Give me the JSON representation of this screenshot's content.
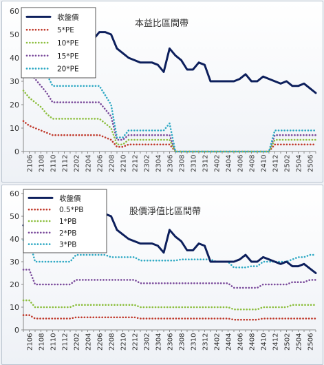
{
  "chart_data": [
    {
      "type": "line",
      "title": "本益比區間帶",
      "xlabel": "",
      "ylabel": "",
      "ylim": [
        0,
        60
      ],
      "yticks": [
        0,
        10,
        20,
        30,
        40,
        50,
        60
      ],
      "legend_position": "top-left",
      "x": [
        "2105",
        "2106",
        "2107",
        "2108",
        "2109",
        "2110",
        "2111",
        "2112",
        "2201",
        "2202",
        "2203",
        "2204",
        "2205",
        "2206",
        "2207",
        "2208",
        "2209",
        "2210",
        "2211",
        "2212",
        "2301",
        "2302",
        "2303",
        "2304",
        "2305",
        "2306",
        "2307",
        "2308",
        "2309",
        "2310",
        "2311",
        "2312",
        "2401",
        "2402",
        "2403",
        "2404",
        "2405",
        "2406",
        "2407",
        "2408",
        "2409",
        "2410",
        "2411",
        "2412",
        "2501",
        "2502",
        "2503",
        "2504",
        "2505",
        "2506",
        "2507"
      ],
      "xtick_labels": [
        "2106",
        "2108",
        "2110",
        "2112",
        "2202",
        "2204",
        "2206",
        "2208",
        "2210",
        "2212",
        "2302",
        "2304",
        "2306",
        "2308",
        "2310",
        "2312",
        "2402",
        "2404",
        "2406",
        "2408",
        "2410",
        "2412",
        "2502",
        "2504",
        "2506"
      ],
      "series": [
        {
          "name": "收盤價",
          "color": "#0d1f5c",
          "style": "solid",
          "values": [
            46,
            48,
            46,
            43,
            44,
            45,
            44,
            43,
            45,
            46,
            44,
            44,
            48,
            51,
            51,
            50,
            44,
            42,
            40,
            39,
            38,
            38,
            38,
            37,
            34,
            44,
            41,
            39,
            35,
            35,
            38,
            37,
            30,
            30,
            30,
            30,
            30,
            31,
            33,
            30,
            30,
            32,
            31,
            30,
            29,
            30,
            28,
            28,
            29,
            27,
            25
          ]
        },
        {
          "name": "5*PE",
          "color": "#c0392b",
          "style": "dotted",
          "values": [
            13,
            11,
            10,
            9,
            8,
            7,
            7,
            7,
            7,
            7,
            7,
            7,
            7,
            7,
            6,
            5,
            2,
            2,
            3,
            3,
            3,
            3,
            3,
            3,
            3,
            3,
            0,
            0,
            0,
            0,
            0,
            0,
            0,
            0,
            0,
            0,
            0,
            0,
            0,
            0,
            0,
            0,
            0,
            3,
            3,
            3,
            3,
            3,
            3,
            3,
            3
          ]
        },
        {
          "name": "10*PE",
          "color": "#8dbf3f",
          "style": "dotted",
          "values": [
            26,
            23,
            21,
            19,
            16,
            14,
            14,
            14,
            14,
            14,
            14,
            14,
            14,
            14,
            12,
            10,
            3,
            3,
            5,
            5,
            5,
            5,
            5,
            5,
            5,
            5,
            0,
            0,
            0,
            0,
            0,
            0,
            0,
            0,
            0,
            0,
            0,
            0,
            0,
            0,
            0,
            0,
            0,
            5,
            5,
            5,
            5,
            5,
            5,
            5,
            5
          ]
        },
        {
          "name": "15*PE",
          "color": "#7a4a9b",
          "style": "dotted",
          "values": [
            39,
            34,
            31,
            28,
            25,
            21,
            21,
            21,
            21,
            21,
            21,
            21,
            21,
            21,
            18,
            15,
            5,
            5,
            7,
            7,
            7,
            7,
            7,
            7,
            7,
            7,
            0,
            0,
            0,
            0,
            0,
            0,
            0,
            0,
            0,
            0,
            0,
            0,
            0,
            0,
            0,
            0,
            0,
            7,
            7,
            7,
            7,
            7,
            7,
            7,
            7
          ]
        },
        {
          "name": "20*PE",
          "color": "#2fa9c4",
          "style": "dotted",
          "values": [
            52,
            45,
            41,
            37,
            33,
            28,
            28,
            28,
            28,
            28,
            28,
            28,
            28,
            28,
            24,
            20,
            6,
            6,
            9,
            9,
            9,
            9,
            9,
            9,
            9,
            12,
            0,
            0,
            0,
            0,
            0,
            0,
            0,
            0,
            0,
            0,
            0,
            0,
            0,
            0,
            0,
            0,
            0,
            9,
            9,
            9,
            9,
            9,
            9,
            9,
            9
          ]
        }
      ]
    },
    {
      "type": "line",
      "title": "股價淨值比區間帶",
      "xlabel": "",
      "ylabel": "",
      "ylim": [
        0,
        60
      ],
      "yticks": [
        0,
        10,
        20,
        30,
        40,
        50,
        60
      ],
      "legend_position": "top-left",
      "x": [
        "2105",
        "2106",
        "2107",
        "2108",
        "2109",
        "2110",
        "2111",
        "2112",
        "2201",
        "2202",
        "2203",
        "2204",
        "2205",
        "2206",
        "2207",
        "2208",
        "2209",
        "2210",
        "2211",
        "2212",
        "2301",
        "2302",
        "2303",
        "2304",
        "2305",
        "2306",
        "2307",
        "2308",
        "2309",
        "2310",
        "2311",
        "2312",
        "2401",
        "2402",
        "2403",
        "2404",
        "2405",
        "2406",
        "2407",
        "2408",
        "2409",
        "2410",
        "2411",
        "2412",
        "2501",
        "2502",
        "2503",
        "2504",
        "2505",
        "2506",
        "2507"
      ],
      "xtick_labels": [
        "2106",
        "2108",
        "2110",
        "2112",
        "2202",
        "2204",
        "2206",
        "2208",
        "2210",
        "2212",
        "2302",
        "2304",
        "2306",
        "2308",
        "2310",
        "2312",
        "2402",
        "2404",
        "2406",
        "2408",
        "2410",
        "2412",
        "2502",
        "2504",
        "2506"
      ],
      "series": [
        {
          "name": "收盤價",
          "color": "#0d1f5c",
          "style": "solid",
          "values": [
            46,
            48,
            46,
            43,
            44,
            45,
            44,
            43,
            45,
            46,
            44,
            44,
            48,
            51,
            51,
            50,
            44,
            42,
            40,
            39,
            38,
            38,
            38,
            37,
            34,
            44,
            41,
            39,
            35,
            35,
            38,
            37,
            30,
            30,
            30,
            30,
            30,
            31,
            33,
            30,
            30,
            32,
            31,
            30,
            29,
            30,
            28,
            28,
            29,
            27,
            25
          ]
        },
        {
          "name": "0.5*PB",
          "color": "#c0392b",
          "style": "dotted",
          "values": [
            6.5,
            6.5,
            5,
            5,
            5,
            5,
            5,
            5,
            5,
            5.5,
            5.5,
            5.5,
            5.5,
            5.5,
            5.5,
            5.5,
            5.5,
            5.5,
            5.5,
            5.5,
            5,
            5,
            5,
            5,
            5,
            5,
            5,
            5,
            5,
            5,
            5,
            5,
            5,
            5,
            5,
            5,
            4.5,
            4.5,
            4.5,
            4.5,
            4.5,
            5,
            5,
            5,
            5,
            5,
            5,
            5,
            5,
            5,
            5
          ]
        },
        {
          "name": "1*PB",
          "color": "#8dbf3f",
          "style": "dotted",
          "values": [
            13,
            13,
            10,
            10,
            10,
            10,
            10,
            10,
            10,
            11,
            11,
            11,
            11,
            11,
            11,
            11,
            11,
            11,
            11,
            11,
            10,
            10,
            10,
            10,
            10,
            10,
            10,
            10,
            10,
            10,
            10,
            10,
            10,
            10,
            10,
            10,
            9,
            9,
            9,
            9,
            9,
            10,
            10,
            10,
            10,
            10,
            11,
            11,
            11,
            11,
            11
          ]
        },
        {
          "name": "2*PB",
          "color": "#7a4a9b",
          "style": "dotted",
          "values": [
            26.5,
            26.5,
            20,
            20,
            20,
            20,
            20,
            20,
            20,
            22,
            22,
            22,
            22,
            22,
            22,
            22,
            22,
            22,
            22,
            22,
            20.5,
            20.5,
            20.5,
            20.5,
            20.5,
            20.5,
            20.5,
            20.5,
            20.5,
            20.5,
            20.5,
            20.5,
            20.5,
            20.5,
            20.5,
            20.5,
            18.5,
            18.5,
            18.5,
            18.5,
            18.5,
            20,
            20,
            20,
            20,
            20,
            21,
            21,
            21,
            22,
            22
          ]
        },
        {
          "name": "3*PB",
          "color": "#2fa9c4",
          "style": "dotted",
          "values": [
            39.5,
            39.5,
            30,
            30,
            30,
            30,
            30,
            30,
            30,
            33,
            33,
            33,
            33,
            33,
            33,
            32,
            32,
            32,
            32,
            32,
            30.5,
            30.5,
            30.5,
            30.5,
            30.5,
            30.5,
            30.5,
            31,
            31,
            31,
            31,
            31,
            31,
            30,
            30,
            30,
            27.5,
            27.5,
            27.5,
            28,
            28,
            30,
            30,
            30,
            30,
            30,
            31,
            32,
            32,
            33,
            33
          ]
        }
      ]
    }
  ]
}
